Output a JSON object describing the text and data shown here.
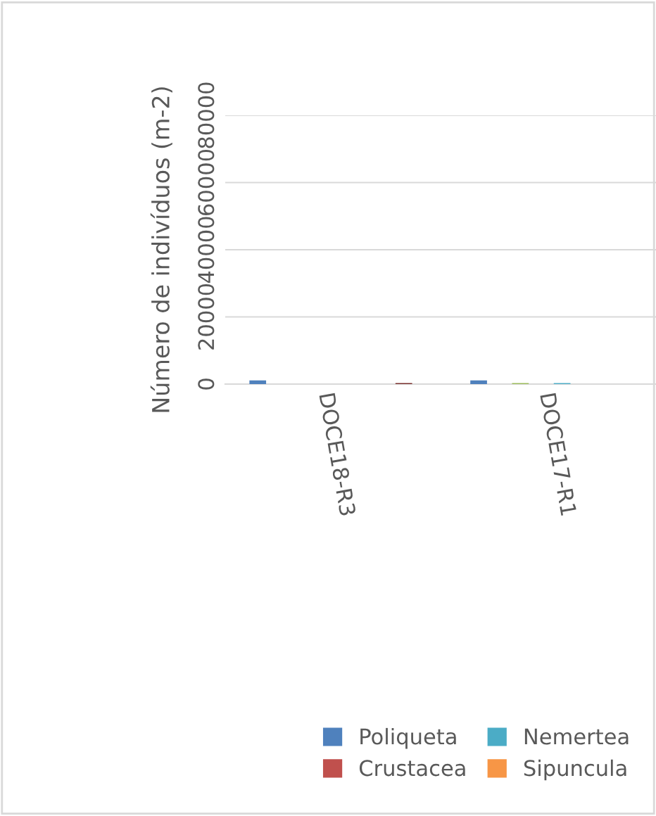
{
  "chart_data": {
    "type": "bar",
    "ylabel": "Número de indivíduos (m-2)",
    "categories": [
      "DOCE18-R3",
      "DOCE17-R1"
    ],
    "series": [
      {
        "name": "Poliqueta",
        "color": "#4f81bd",
        "values": [
          1100,
          1100
        ]
      },
      {
        "name": "Crustacea",
        "color": "#c0504d",
        "values": [
          0,
          0
        ]
      },
      {
        "color": "#9bbb59",
        "values": [
          0,
          300
        ]
      },
      {
        "color": "#8064a2",
        "values": [
          0,
          0
        ]
      },
      {
        "name": "Nemertea",
        "color": "#4bacc6",
        "values": [
          0,
          300
        ]
      },
      {
        "name": "Sipuncula",
        "color": "#f79646",
        "values": [
          0,
          0
        ]
      },
      {
        "color": "#2c4d75",
        "values": [
          0,
          0
        ]
      },
      {
        "color": "#772c2a",
        "values": [
          300,
          0
        ]
      }
    ],
    "ylim": [
      0,
      80000
    ],
    "yticks": [
      0,
      20000,
      40000,
      60000,
      80000
    ],
    "grid": "y",
    "legend": "bottom"
  }
}
